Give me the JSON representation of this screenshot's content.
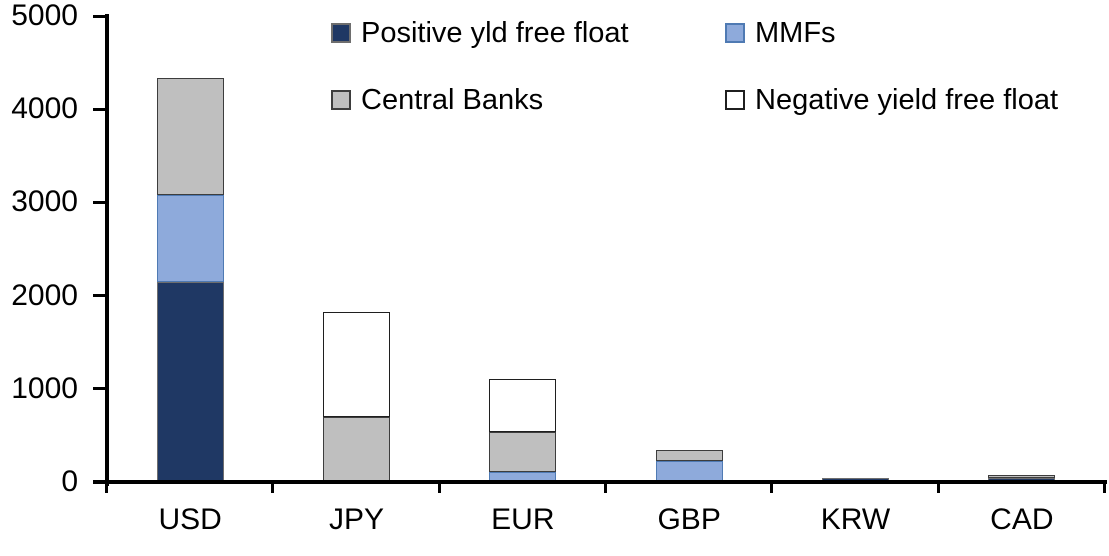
{
  "chart_data": {
    "type": "bar",
    "stacked": true,
    "title": "",
    "categories": [
      "USD",
      "JPY",
      "EUR",
      "GBP",
      "KRW",
      "CAD"
    ],
    "series": [
      {
        "name": "Positive yld free float",
        "color": "#1F3864",
        "border_color": "#6e6e6e",
        "values": [
          2150,
          0,
          0,
          0,
          45,
          40
        ]
      },
      {
        "name": "MMFs",
        "color": "#8EAADB",
        "border_color": "#4f7ab3",
        "values": [
          930,
          0,
          110,
          230,
          0,
          0
        ]
      },
      {
        "name": "Central Banks",
        "color": "#BFBFBF",
        "border_color": "#3d3d3d",
        "values": [
          1250,
          700,
          430,
          110,
          0,
          40
        ]
      },
      {
        "name": "Negative yield free float",
        "color": "#FFFFFF",
        "border_color": "#1f1f1f",
        "values": [
          0,
          1120,
          570,
          0,
          0,
          0
        ]
      }
    ],
    "totals": [
      4330,
      1820,
      1110,
      340,
      45,
      80
    ],
    "y_axis": {
      "min": 0,
      "max": 5000,
      "tick_interval": 1000,
      "tick_labels": [
        "0",
        "1000",
        "2000",
        "3000",
        "4000",
        "5000"
      ]
    },
    "x_axis": {
      "label": ""
    },
    "legend_position": "top",
    "legend_rows": 2,
    "grid": false,
    "axis_color": "#000000",
    "text_color": "#000000",
    "background": "#FFFFFF"
  }
}
